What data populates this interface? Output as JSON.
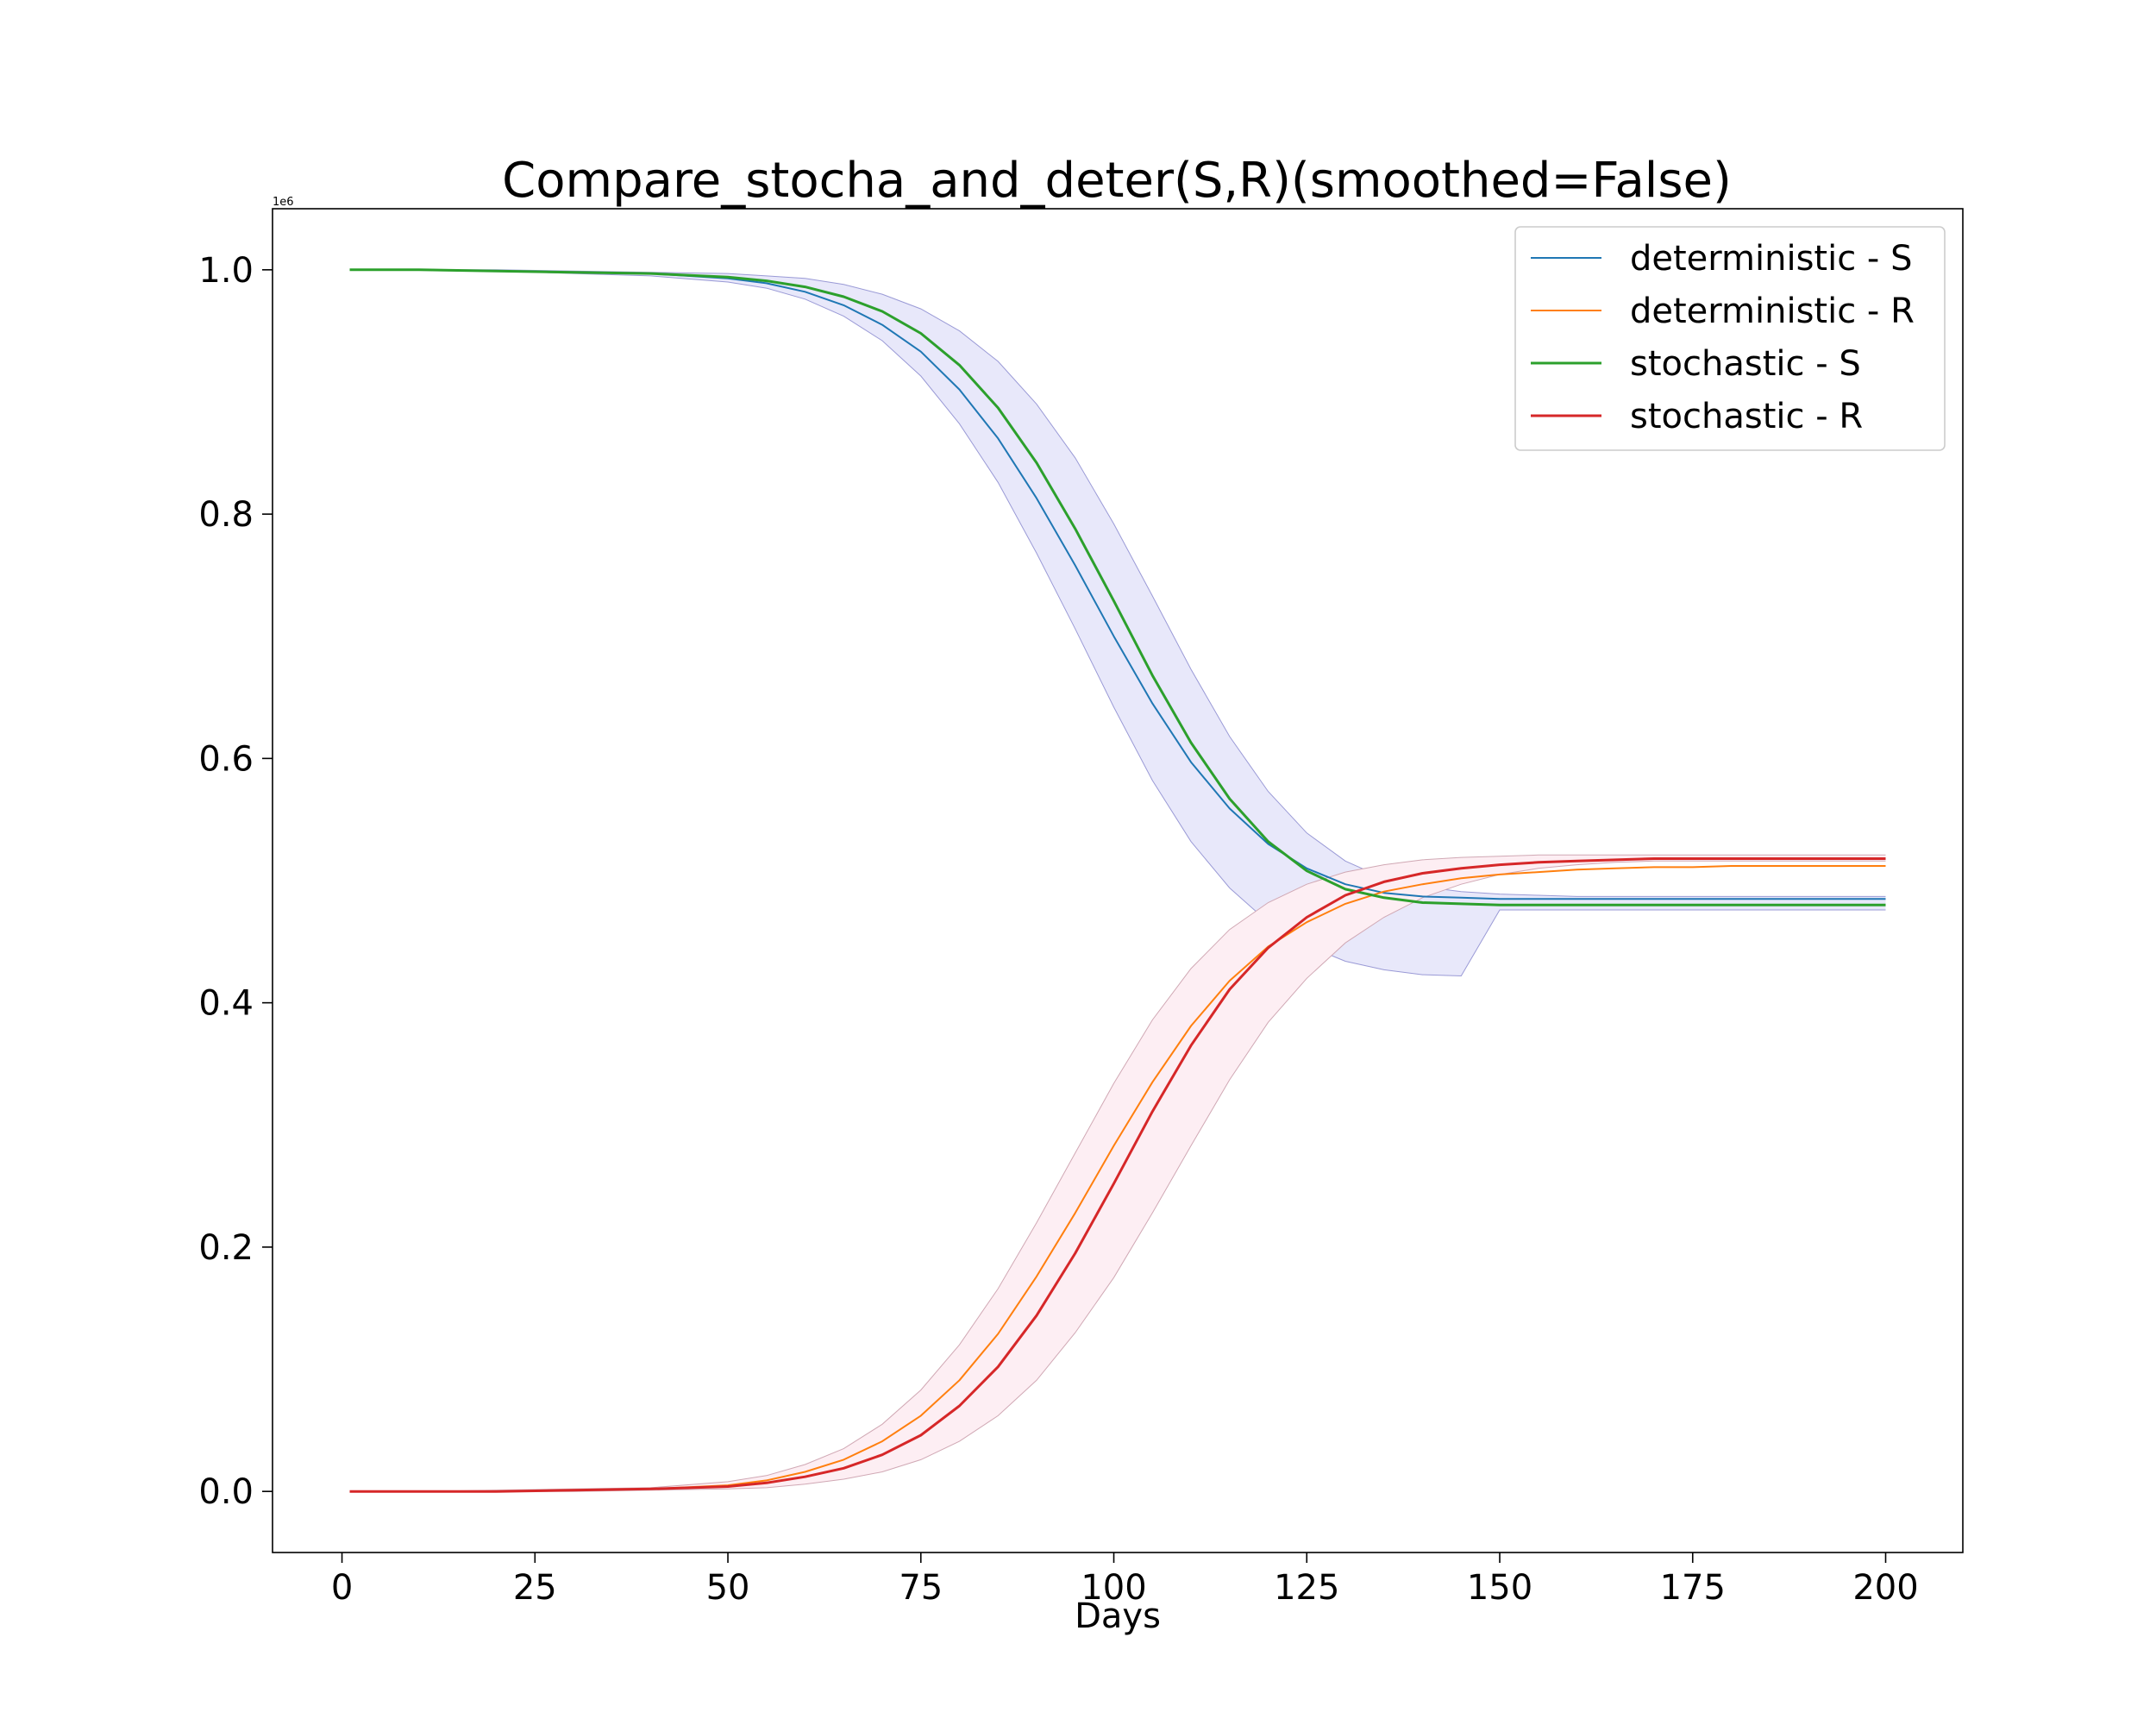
{
  "chart_data": {
    "type": "line",
    "title": "Compare_stocha_and_deter(S,R)(smoothed=False)",
    "xlabel": "Days",
    "ylabel": "",
    "y_offset_label": "1e6",
    "xlim": [
      -9,
      210
    ],
    "ylim": [
      -0.05,
      1.05
    ],
    "x_ticks": [
      0,
      25,
      50,
      75,
      100,
      125,
      150,
      175,
      200
    ],
    "x_tick_labels": [
      "0",
      "25",
      "50",
      "75",
      "100",
      "125",
      "150",
      "175",
      "200"
    ],
    "y_ticks": [
      0.0,
      0.2,
      0.4,
      0.6,
      0.8,
      1.0
    ],
    "y_tick_labels": [
      "0.0",
      "0.2",
      "0.4",
      "0.6",
      "0.8",
      "1.0"
    ],
    "grid": false,
    "legend_position": "top-right",
    "x": [
      1,
      10,
      20,
      30,
      40,
      50,
      55,
      60,
      65,
      70,
      75,
      80,
      85,
      90,
      95,
      100,
      105,
      110,
      115,
      120,
      125,
      130,
      135,
      140,
      145,
      150,
      155,
      160,
      165,
      170,
      175,
      180,
      185,
      190,
      195,
      200
    ],
    "series": [
      {
        "name": "deterministic - S",
        "color": "#1f77b4",
        "values": [
          1.0,
          1.0,
          0.999,
          0.998,
          0.997,
          0.993,
          0.989,
          0.982,
          0.971,
          0.955,
          0.933,
          0.902,
          0.862,
          0.813,
          0.758,
          0.7,
          0.645,
          0.597,
          0.559,
          0.53,
          0.51,
          0.497,
          0.49,
          0.487,
          0.486,
          0.485,
          0.485,
          0.485,
          0.485,
          0.485,
          0.485,
          0.485,
          0.485,
          0.485,
          0.485,
          0.485
        ]
      },
      {
        "name": "deterministic - R",
        "color": "#ff7f0e",
        "values": [
          0.0,
          0.0,
          0.0,
          0.001,
          0.002,
          0.005,
          0.009,
          0.016,
          0.026,
          0.041,
          0.062,
          0.091,
          0.129,
          0.176,
          0.228,
          0.283,
          0.335,
          0.381,
          0.418,
          0.446,
          0.466,
          0.481,
          0.491,
          0.497,
          0.502,
          0.505,
          0.507,
          0.509,
          0.51,
          0.511,
          0.511,
          0.512,
          0.512,
          0.512,
          0.512,
          0.512
        ]
      },
      {
        "name": "stochastic - S",
        "color": "#2ca02c",
        "values": [
          1.0,
          1.0,
          0.999,
          0.998,
          0.997,
          0.994,
          0.991,
          0.986,
          0.978,
          0.966,
          0.948,
          0.922,
          0.887,
          0.842,
          0.788,
          0.729,
          0.668,
          0.613,
          0.567,
          0.532,
          0.508,
          0.493,
          0.486,
          0.482,
          0.481,
          0.48,
          0.48,
          0.48,
          0.48,
          0.48,
          0.48,
          0.48,
          0.48,
          0.48,
          0.48,
          0.48
        ]
      },
      {
        "name": "stochastic - R",
        "color": "#d62728",
        "values": [
          0.0,
          0.0,
          0.0,
          0.001,
          0.002,
          0.004,
          0.007,
          0.012,
          0.019,
          0.03,
          0.046,
          0.07,
          0.102,
          0.144,
          0.195,
          0.252,
          0.311,
          0.365,
          0.411,
          0.445,
          0.47,
          0.488,
          0.499,
          0.506,
          0.51,
          0.513,
          0.515,
          0.516,
          0.517,
          0.518,
          0.518,
          0.518,
          0.518,
          0.518,
          0.518,
          0.518
        ]
      }
    ],
    "bands": [
      {
        "color": "#e8e8fa",
        "edge_color": "#9a9ad6",
        "lower": [
          1.0,
          1.0,
          0.999,
          0.997,
          0.995,
          0.99,
          0.985,
          0.976,
          0.962,
          0.942,
          0.913,
          0.874,
          0.826,
          0.768,
          0.706,
          0.642,
          0.582,
          0.532,
          0.494,
          0.466,
          0.447,
          0.434,
          0.427,
          0.423,
          0.422,
          0.476,
          0.476,
          0.476,
          0.476,
          0.476,
          0.476,
          0.476,
          0.476,
          0.476,
          0.476,
          0.476
        ],
        "upper": [
          1.0,
          1.0,
          1.0,
          0.999,
          0.998,
          0.997,
          0.995,
          0.993,
          0.988,
          0.98,
          0.968,
          0.95,
          0.925,
          0.89,
          0.846,
          0.792,
          0.733,
          0.673,
          0.618,
          0.573,
          0.539,
          0.516,
          0.502,
          0.495,
          0.491,
          0.489,
          0.488,
          0.487,
          0.487,
          0.487,
          0.487,
          0.487,
          0.487,
          0.487,
          0.487,
          0.487
        ]
      },
      {
        "color": "#fdeef3",
        "edge_color": "#d0a8b4",
        "lower": [
          0.0,
          0.0,
          0.0,
          0.0,
          0.001,
          0.002,
          0.003,
          0.006,
          0.01,
          0.016,
          0.026,
          0.041,
          0.062,
          0.091,
          0.13,
          0.175,
          0.228,
          0.283,
          0.337,
          0.384,
          0.42,
          0.449,
          0.47,
          0.486,
          0.497,
          0.505,
          0.51,
          0.513,
          0.515,
          0.516,
          0.516,
          0.516,
          0.516,
          0.516,
          0.516,
          0.516
        ],
        "upper": [
          0.0,
          0.0,
          0.001,
          0.002,
          0.003,
          0.008,
          0.013,
          0.022,
          0.035,
          0.055,
          0.083,
          0.12,
          0.166,
          0.22,
          0.277,
          0.334,
          0.386,
          0.428,
          0.46,
          0.482,
          0.497,
          0.507,
          0.513,
          0.517,
          0.519,
          0.52,
          0.521,
          0.521,
          0.521,
          0.521,
          0.521,
          0.521,
          0.521,
          0.521,
          0.521,
          0.521
        ]
      }
    ]
  }
}
